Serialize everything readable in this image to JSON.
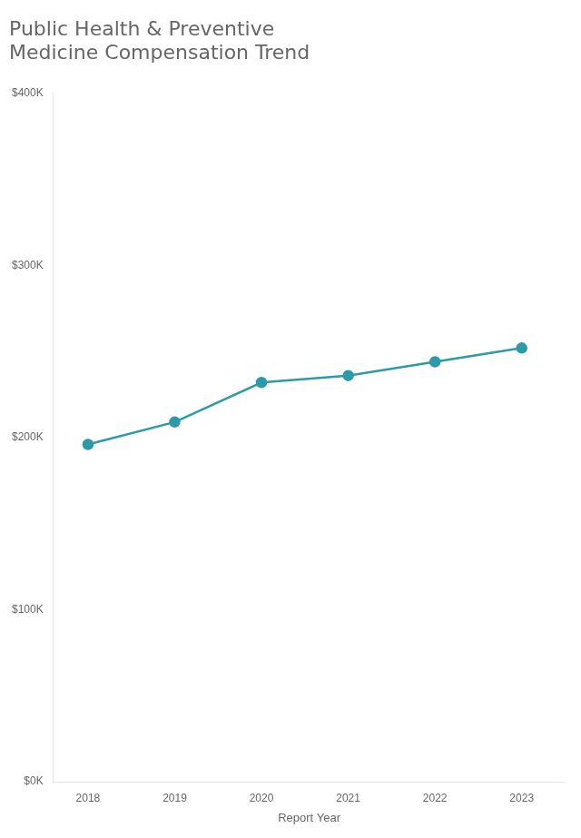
{
  "chart_data": {
    "type": "line",
    "title": "Public Health & Preventive\nMedicine Compensation Trend",
    "xlabel": "Report Year",
    "x": [
      2018,
      2019,
      2020,
      2021,
      2022,
      2023
    ],
    "values": [
      196000,
      209000,
      232000,
      236000,
      244000,
      252000
    ],
    "color": "#2d9aaa",
    "marker": "circle",
    "xlim": [
      2017.6,
      2023.5
    ],
    "xticks": [
      2018,
      2019,
      2020,
      2021,
      2022,
      2023
    ],
    "ylim": [
      0,
      400000
    ],
    "yticks": [
      {
        "value": 0,
        "label": "$0K"
      },
      {
        "value": 100000,
        "label": "$100K"
      },
      {
        "value": 200000,
        "label": "$200K"
      },
      {
        "value": 300000,
        "label": "$300K"
      },
      {
        "value": 400000,
        "label": "$400K"
      }
    ],
    "grid": false
  }
}
